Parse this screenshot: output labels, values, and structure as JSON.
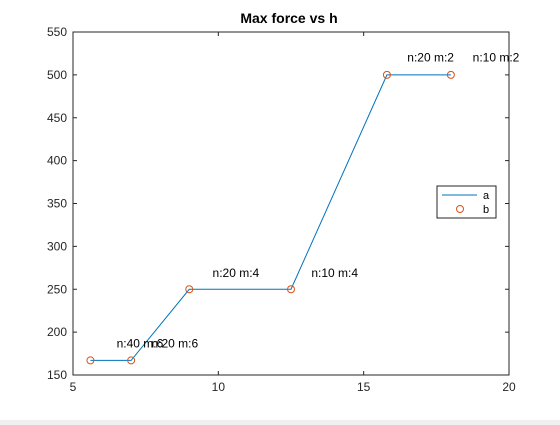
{
  "chart_data": {
    "type": "line",
    "title": "Max force vs h",
    "xlabel": "",
    "ylabel": "",
    "xlim": [
      5,
      20
    ],
    "ylim": [
      150,
      550
    ],
    "xticks": [
      5,
      10,
      15,
      20
    ],
    "yticks": [
      150,
      200,
      250,
      300,
      350,
      400,
      450,
      500,
      550
    ],
    "grid": false,
    "legend_position": "right",
    "series": [
      {
        "name": "a",
        "style": "line",
        "color": "#0072bd",
        "x": [
          5.6,
          7.0,
          9.0,
          12.5,
          15.8,
          18.0
        ],
        "y": [
          167,
          167,
          250,
          250,
          500,
          500
        ]
      },
      {
        "name": "b",
        "style": "markers",
        "marker": "circle",
        "color": "#d95319",
        "x": [
          5.6,
          7.0,
          9.0,
          12.5,
          15.8,
          18.0
        ],
        "y": [
          167,
          167,
          250,
          250,
          500,
          500
        ]
      }
    ],
    "annotations": [
      {
        "text": "n:40 m:6",
        "x": 6.5,
        "y": 187
      },
      {
        "text": "n:20 m:6",
        "x": 7.7,
        "y": 187
      },
      {
        "text": "n:20 m:4",
        "x": 9.8,
        "y": 269
      },
      {
        "text": "n:10 m:4",
        "x": 13.2,
        "y": 269
      },
      {
        "text": "n:20 m:2",
        "x": 16.5,
        "y": 520
      },
      {
        "text": "n:10 m:2",
        "x": 18.75,
        "y": 520
      }
    ]
  }
}
